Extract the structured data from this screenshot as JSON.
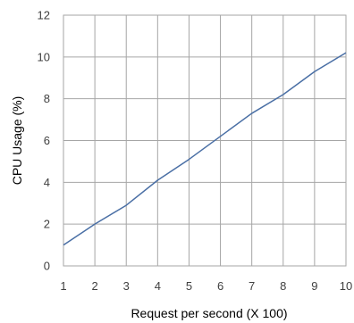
{
  "chart_data": {
    "type": "line",
    "title": "",
    "xlabel": "Request per second (X 100)",
    "ylabel": "CPU Usage (%)",
    "xlim": [
      1,
      10
    ],
    "ylim": [
      0,
      12
    ],
    "x_ticks": [
      "1",
      "2",
      "3",
      "4",
      "5",
      "6",
      "7",
      "8",
      "9",
      "10"
    ],
    "y_ticks": [
      "0",
      "2",
      "4",
      "6",
      "8",
      "10",
      "12"
    ],
    "grid": true,
    "legend": "none",
    "series": [
      {
        "color": "#4a6fa5",
        "x": [
          1,
          2,
          3,
          4,
          5,
          6,
          7,
          8,
          9,
          10
        ],
        "y": [
          1.0,
          2.0,
          2.9,
          4.1,
          5.1,
          6.2,
          7.3,
          8.2,
          9.3,
          10.2
        ]
      }
    ],
    "colors": {
      "grid": "#a6a6a6",
      "line": "#4a6fa5"
    }
  }
}
